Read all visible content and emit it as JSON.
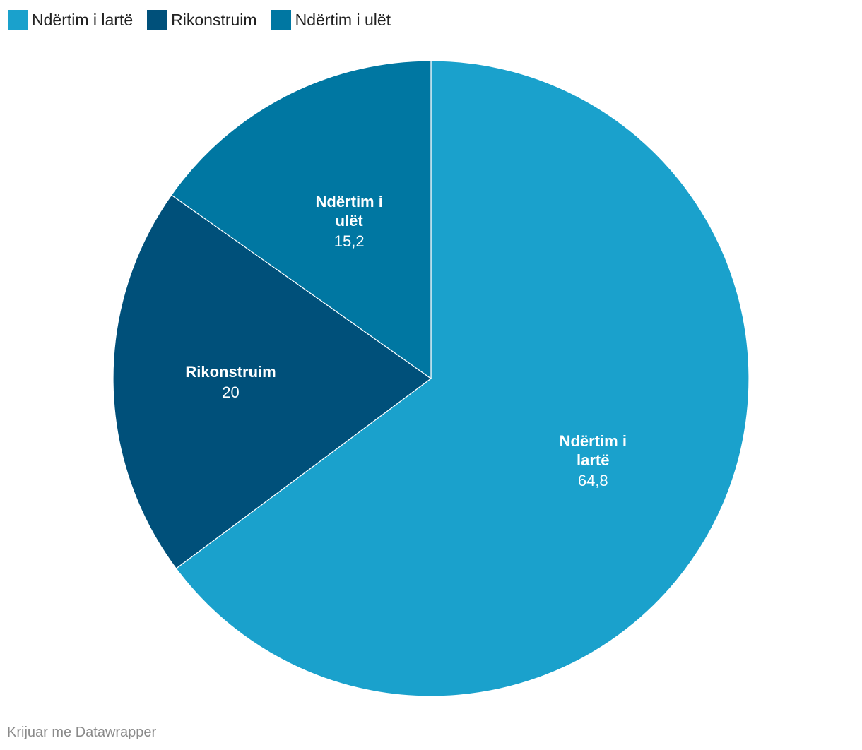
{
  "chart_data": {
    "type": "pie",
    "categories": [
      "Ndërtim i lartë",
      "Rikonstruim",
      "Ndërtim i ulët"
    ],
    "values": [
      64.8,
      20,
      15.2
    ],
    "value_labels": [
      "64,8",
      "20",
      "15,2"
    ],
    "slice_label_lines": [
      [
        "Ndërtim i",
        "lartë"
      ],
      [
        "Rikonstruim"
      ],
      [
        "Ndërtim i",
        "ulët"
      ]
    ],
    "colors": [
      "#1aa1cc",
      "#00507a",
      "#0077a2"
    ],
    "slice_border_color": "#ffffff",
    "direction": "clockwise-from-top",
    "legend_position": "top-left",
    "title": ""
  },
  "legend": {
    "items": [
      {
        "label": "Ndërtim i lartë",
        "color": "#1aa1cc"
      },
      {
        "label": "Rikonstruim",
        "color": "#00507a"
      },
      {
        "label": "Ndërtim i ulët",
        "color": "#0077a2"
      }
    ]
  },
  "footer": {
    "credit": "Krijuar me Datawrapper"
  }
}
